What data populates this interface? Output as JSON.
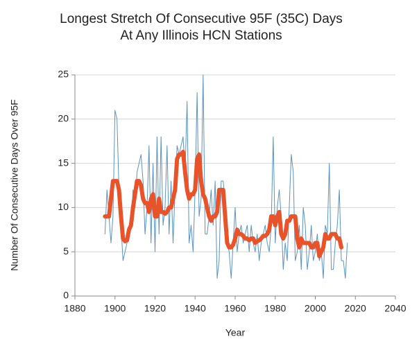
{
  "chart_data": {
    "type": "line",
    "title": [
      "Longest Stretch Of Consecutive 95F (35C) Days",
      "At Any Illinois HCN Stations"
    ],
    "xlabel": "Year",
    "ylabel": "Number Of Consecutive Days Over 95F",
    "x": [
      1895,
      1896,
      1897,
      1898,
      1899,
      1900,
      1901,
      1902,
      1903,
      1904,
      1905,
      1906,
      1907,
      1908,
      1909,
      1910,
      1911,
      1912,
      1913,
      1914,
      1915,
      1916,
      1917,
      1918,
      1919,
      1920,
      1921,
      1922,
      1923,
      1924,
      1925,
      1926,
      1927,
      1928,
      1929,
      1930,
      1931,
      1932,
      1933,
      1934,
      1935,
      1936,
      1937,
      1938,
      1939,
      1940,
      1941,
      1942,
      1943,
      1944,
      1945,
      1946,
      1947,
      1948,
      1949,
      1950,
      1951,
      1952,
      1953,
      1954,
      1955,
      1956,
      1957,
      1958,
      1959,
      1960,
      1961,
      1962,
      1963,
      1964,
      1965,
      1966,
      1967,
      1968,
      1969,
      1970,
      1971,
      1972,
      1973,
      1974,
      1975,
      1976,
      1977,
      1978,
      1979,
      1980,
      1981,
      1982,
      1983,
      1984,
      1985,
      1986,
      1987,
      1988,
      1989,
      1990,
      1991,
      1992,
      1993,
      1994,
      1995,
      1996,
      1997,
      1998,
      1999,
      2000,
      2001,
      2002,
      2003,
      2004,
      2005,
      2006,
      2007,
      2008,
      2009,
      2010,
      2011,
      2012,
      2013,
      2014,
      2015,
      2016
    ],
    "series": [
      {
        "color": "#5b93bd",
        "width": 1,
        "values": [
          7,
          12,
          9,
          6,
          9,
          21,
          20,
          12,
          8,
          4,
          5,
          6,
          7,
          8,
          12,
          10,
          14,
          15,
          16,
          13,
          7,
          10,
          17,
          6,
          15,
          5,
          18,
          7,
          18,
          8,
          10,
          17,
          7,
          13,
          6,
          12,
          17,
          16,
          17,
          18,
          14,
          22,
          6,
          8,
          5,
          12,
          23,
          9,
          11,
          25,
          7,
          7,
          9,
          12,
          8,
          13,
          2,
          4,
          13,
          13,
          11,
          6,
          5,
          2,
          6,
          10,
          5,
          7,
          8,
          6,
          7,
          8,
          5,
          8,
          6,
          5,
          7,
          4,
          6,
          7,
          8,
          6,
          5,
          8,
          18,
          6,
          10,
          12,
          9,
          3,
          6,
          4,
          10,
          16,
          14,
          4,
          5,
          8,
          3,
          10,
          8,
          3,
          5,
          8,
          4,
          5,
          7,
          4,
          5,
          2,
          8,
          7,
          15,
          3,
          3,
          6,
          8,
          12,
          4,
          4,
          2,
          6
        ]
      },
      {
        "color": "#e8532a",
        "width": 6,
        "values": [
          9,
          9,
          9,
          11,
          13,
          13,
          13,
          12,
          9,
          6.5,
          6.2,
          6.3,
          7.5,
          8,
          10,
          11.5,
          13,
          13,
          12.5,
          11,
          10.5,
          10.5,
          9.5,
          11,
          11.5,
          9,
          9,
          11,
          9.5,
          9.5,
          9.3,
          9.5,
          10,
          10,
          11,
          12,
          15.5,
          16,
          16,
          16.3,
          14,
          12,
          11,
          11.5,
          11.5,
          12,
          15.5,
          16,
          13,
          11.5,
          11,
          10,
          9,
          8.5,
          9,
          9,
          9.5,
          12,
          12,
          12,
          9,
          6,
          5.5,
          5.5,
          5.8,
          6.5,
          7.5,
          7,
          7,
          6.8,
          6.5,
          6.5,
          6.3,
          6.5,
          6.5,
          6,
          6.2,
          6.3,
          6.5,
          6.8,
          6.8,
          7,
          7.5,
          9,
          9,
          8,
          9,
          9.5,
          7,
          6.5,
          7,
          8.5,
          8.5,
          9,
          9,
          9,
          6.5,
          5.5,
          6.5,
          6,
          6,
          6,
          6,
          5.5,
          5.5,
          6,
          6,
          4.5,
          5,
          5.5,
          7,
          6.5,
          6.5,
          7,
          7,
          7,
          6.5,
          6.5,
          5.5,
          null,
          null,
          null
        ]
      }
    ],
    "xlim": [
      1880,
      2040
    ],
    "xticks": [
      1880,
      1900,
      1920,
      1940,
      1960,
      1980,
      2000,
      2020,
      2040
    ],
    "ylim": [
      0,
      25
    ],
    "yticks": [
      0,
      5,
      10,
      15,
      20,
      25
    ],
    "grid": true
  }
}
